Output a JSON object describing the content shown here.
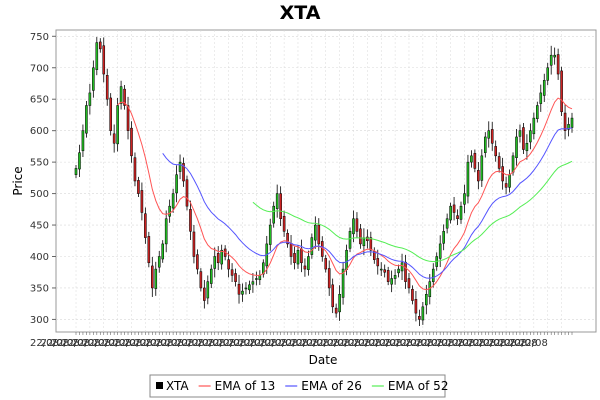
{
  "chart_data": {
    "type": "candlestick",
    "title": "XTA",
    "xlabel": "Date",
    "ylabel": "Price",
    "ylim": [
      280,
      760
    ],
    "yticks": [
      300,
      350,
      400,
      450,
      500,
      550,
      600,
      650,
      700,
      750
    ],
    "x_tick_label": "22/08",
    "grid": true,
    "legend_position": "bottom",
    "colors": {
      "up": "#22bb22",
      "down": "#cc2222",
      "candle_outline": "#000000",
      "ema13": "#ff5555",
      "ema26": "#5555ff",
      "ema52": "#55ee55",
      "plot_background": "#ffffff",
      "grid": "#d8d8d8"
    },
    "series": [
      {
        "name": "XTA",
        "kind": "ohlc"
      },
      {
        "name": "EMA of 13",
        "kind": "ema",
        "period": 13
      },
      {
        "name": "EMA of 26",
        "kind": "ema",
        "period": 26
      },
      {
        "name": "EMA of 52",
        "kind": "ema",
        "period": 52
      }
    ],
    "closes": [
      540,
      565,
      600,
      640,
      660,
      700,
      740,
      730,
      690,
      650,
      600,
      580,
      640,
      670,
      640,
      600,
      560,
      520,
      500,
      470,
      430,
      390,
      350,
      380,
      400,
      420,
      460,
      480,
      500,
      530,
      550,
      520,
      480,
      440,
      400,
      380,
      350,
      330,
      360,
      380,
      400,
      390,
      410,
      400,
      380,
      370,
      360,
      340,
      345,
      350,
      355,
      360,
      365,
      370,
      390,
      420,
      450,
      480,
      500,
      460,
      440,
      420,
      400,
      390,
      410,
      390,
      380,
      400,
      430,
      450,
      420,
      400,
      380,
      350,
      320,
      310,
      340,
      380,
      410,
      440,
      460,
      440,
      420,
      430,
      425,
      410,
      395,
      385,
      380,
      375,
      360,
      365,
      370,
      380,
      390,
      360,
      350,
      330,
      310,
      300,
      320,
      340,
      360,
      380,
      400,
      420,
      440,
      460,
      480,
      470,
      460,
      480,
      500,
      550,
      560,
      540,
      520,
      560,
      590,
      600,
      580,
      560,
      540,
      520,
      510,
      530,
      560,
      590,
      600,
      570,
      580,
      600,
      620,
      640,
      660,
      680,
      700,
      720,
      720,
      690,
      630,
      600,
      610,
      620
    ],
    "ema_start_index": {
      "EMA of 13": 12,
      "EMA of 26": 25,
      "EMA of 52": 51
    }
  },
  "legend": {
    "items": [
      {
        "name": "XTA",
        "color": "#000000",
        "kind": "square"
      },
      {
        "name": "EMA of 13",
        "color": "#ff5555",
        "kind": "line"
      },
      {
        "name": "EMA of 26",
        "color": "#5555ff",
        "kind": "line"
      },
      {
        "name": "EMA of 52",
        "color": "#55ee55",
        "kind": "line"
      }
    ]
  }
}
